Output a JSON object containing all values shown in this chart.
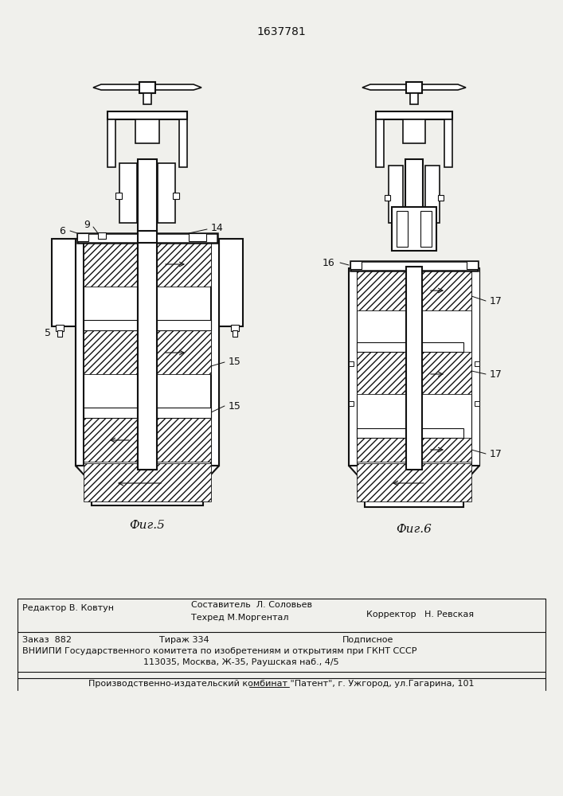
{
  "title_number": "1637781",
  "fig5_label": "Фиг.5",
  "fig6_label": "Фиг.6",
  "bg_color": "#f0f0ec",
  "line_color": "#111111",
  "footer_line1_left": "Редактор В. Ковтун",
  "footer_line1_center": "Составитель  Л. Соловьев",
  "footer_line2_center": "Техред М.Моргентал",
  "footer_line2_right": "Корректор   Н. Ревская",
  "order_line": "Заказ  882",
  "tirazh_line": "Тираж 334",
  "podpisnoe_line": "Подписное",
  "vniipи_line": "ВНИИПИ Государственного комитета по изобретениям и открытиям при ГКНТ СССР",
  "address_line": "113035, Москва, Ж-35, Раушская наб., 4/5",
  "production_line": "Производственно-издательский комбинат \"Патент\", г. Ужгород, ул.Гагарина, 101"
}
